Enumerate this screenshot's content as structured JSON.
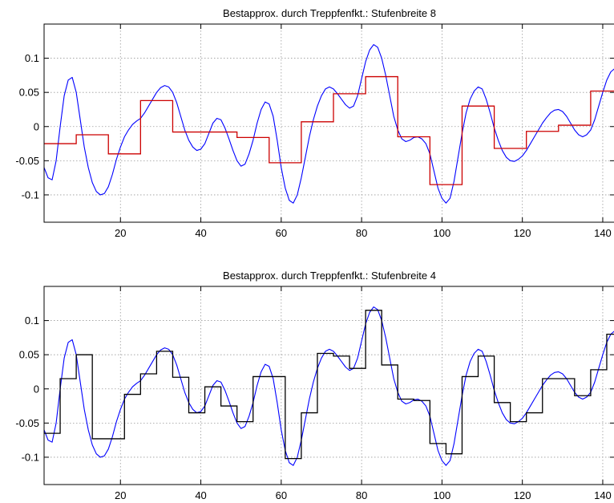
{
  "chart_data": [
    {
      "type": "line",
      "title": "Bestapprox. durch Treppfenfkt.: Stufenbreite 8",
      "xlabel": "",
      "ylabel": "",
      "xlim": [
        1,
        143
      ],
      "ylim": [
        -0.14,
        0.15
      ],
      "grid": true,
      "xticks": [
        20,
        40,
        60,
        80,
        100,
        120,
        140
      ],
      "yticks": [
        -0.1,
        -0.05,
        0,
        0.05,
        0.1
      ],
      "xtick_labels": [
        "20",
        "40",
        "60",
        "80",
        "100",
        "120",
        "140"
      ],
      "ytick_labels": [
        "-0.1",
        "-0.05",
        "0",
        "0.05",
        "0.1"
      ],
      "series": [
        {
          "kind": "line",
          "color": "#0000ff",
          "x": [
            1,
            2,
            3,
            4,
            5,
            6,
            7,
            8,
            9,
            10,
            11,
            12,
            13,
            14,
            15,
            16,
            17,
            18,
            19,
            20,
            21,
            22,
            23,
            24,
            25,
            26,
            27,
            28,
            29,
            30,
            31,
            32,
            33,
            34,
            35,
            36,
            37,
            38,
            39,
            40,
            41,
            42,
            43,
            44,
            45,
            46,
            47,
            48,
            49,
            50,
            51,
            52,
            53,
            54,
            55,
            56,
            57,
            58,
            59,
            60,
            61,
            62,
            63,
            64,
            65,
            66,
            67,
            68,
            69,
            70,
            71,
            72,
            73,
            74,
            75,
            76,
            77,
            78,
            79,
            80,
            81,
            82,
            83,
            84,
            85,
            86,
            87,
            88,
            89,
            90,
            91,
            92,
            93,
            94,
            95,
            96,
            97,
            98,
            99,
            100,
            101,
            102,
            103,
            104,
            105,
            106,
            107,
            108,
            109,
            110,
            111,
            112,
            113,
            114,
            115,
            116,
            117,
            118,
            119,
            120,
            121,
            122,
            123,
            124,
            125,
            126,
            127,
            128,
            129,
            130,
            131,
            132,
            133,
            134,
            135,
            136,
            137,
            138,
            139,
            140,
            141,
            142,
            143
          ],
          "y": [
            -0.06,
            -0.075,
            -0.078,
            -0.05,
            0.0,
            0.045,
            0.068,
            0.072,
            0.05,
            0.01,
            -0.03,
            -0.06,
            -0.082,
            -0.095,
            -0.1,
            -0.098,
            -0.088,
            -0.07,
            -0.048,
            -0.03,
            -0.015,
            -0.005,
            0.003,
            0.008,
            0.012,
            0.02,
            0.03,
            0.04,
            0.05,
            0.057,
            0.06,
            0.058,
            0.05,
            0.035,
            0.015,
            -0.005,
            -0.02,
            -0.03,
            -0.035,
            -0.033,
            -0.025,
            -0.01,
            0.005,
            0.012,
            0.01,
            -0.002,
            -0.018,
            -0.035,
            -0.05,
            -0.058,
            -0.055,
            -0.04,
            -0.02,
            0.005,
            0.025,
            0.036,
            0.033,
            0.015,
            -0.02,
            -0.06,
            -0.09,
            -0.108,
            -0.112,
            -0.1,
            -0.075,
            -0.045,
            -0.015,
            0.01,
            0.03,
            0.045,
            0.055,
            0.058,
            0.055,
            0.048,
            0.04,
            0.032,
            0.027,
            0.03,
            0.045,
            0.07,
            0.095,
            0.112,
            0.12,
            0.116,
            0.1,
            0.075,
            0.045,
            0.015,
            -0.005,
            -0.018,
            -0.022,
            -0.02,
            -0.016,
            -0.015,
            -0.018,
            -0.025,
            -0.04,
            -0.065,
            -0.09,
            -0.105,
            -0.112,
            -0.105,
            -0.08,
            -0.045,
            -0.01,
            0.02,
            0.04,
            0.052,
            0.058,
            0.055,
            0.04,
            0.02,
            -0.002,
            -0.02,
            -0.035,
            -0.045,
            -0.05,
            -0.051,
            -0.048,
            -0.043,
            -0.035,
            -0.025,
            -0.015,
            -0.005,
            0.005,
            0.013,
            0.02,
            0.024,
            0.025,
            0.022,
            0.015,
            0.005,
            -0.005,
            -0.012,
            -0.015,
            -0.012,
            -0.005,
            0.01,
            0.03,
            0.05,
            0.068,
            0.08,
            0.085
          ]
        },
        {
          "kind": "step",
          "color": "#cc0000",
          "edges": [
            1,
            9,
            17,
            25,
            33,
            41,
            49,
            57,
            65,
            73,
            81,
            89,
            97,
            105,
            113,
            121,
            129,
            137,
            143
          ],
          "levels": [
            -0.025,
            -0.012,
            -0.04,
            0.038,
            -0.008,
            -0.008,
            -0.016,
            -0.053,
            0.007,
            0.048,
            0.073,
            -0.015,
            -0.085,
            0.03,
            -0.032,
            -0.007,
            0.002,
            0.052
          ]
        }
      ]
    },
    {
      "type": "line",
      "title": "Bestapprox. durch Treppfenfkt.: Stufenbreite 4",
      "xlabel": "",
      "ylabel": "",
      "xlim": [
        1,
        143
      ],
      "ylim": [
        -0.14,
        0.15
      ],
      "grid": true,
      "xticks": [
        20,
        40,
        60,
        80,
        100,
        120,
        140
      ],
      "yticks": [
        -0.1,
        -0.05,
        0,
        0.05,
        0.1
      ],
      "xtick_labels": [
        "20",
        "40",
        "60",
        "80",
        "100",
        "120",
        "140"
      ],
      "ytick_labels": [
        "-0.1",
        "-0.05",
        "0",
        "0.05",
        "0.1"
      ],
      "series": [
        {
          "kind": "line",
          "color": "#0000ff",
          "x": [
            1,
            2,
            3,
            4,
            5,
            6,
            7,
            8,
            9,
            10,
            11,
            12,
            13,
            14,
            15,
            16,
            17,
            18,
            19,
            20,
            21,
            22,
            23,
            24,
            25,
            26,
            27,
            28,
            29,
            30,
            31,
            32,
            33,
            34,
            35,
            36,
            37,
            38,
            39,
            40,
            41,
            42,
            43,
            44,
            45,
            46,
            47,
            48,
            49,
            50,
            51,
            52,
            53,
            54,
            55,
            56,
            57,
            58,
            59,
            60,
            61,
            62,
            63,
            64,
            65,
            66,
            67,
            68,
            69,
            70,
            71,
            72,
            73,
            74,
            75,
            76,
            77,
            78,
            79,
            80,
            81,
            82,
            83,
            84,
            85,
            86,
            87,
            88,
            89,
            90,
            91,
            92,
            93,
            94,
            95,
            96,
            97,
            98,
            99,
            100,
            101,
            102,
            103,
            104,
            105,
            106,
            107,
            108,
            109,
            110,
            111,
            112,
            113,
            114,
            115,
            116,
            117,
            118,
            119,
            120,
            121,
            122,
            123,
            124,
            125,
            126,
            127,
            128,
            129,
            130,
            131,
            132,
            133,
            134,
            135,
            136,
            137,
            138,
            139,
            140,
            141,
            142,
            143
          ],
          "y": [
            -0.06,
            -0.075,
            -0.078,
            -0.05,
            0.0,
            0.045,
            0.068,
            0.072,
            0.05,
            0.01,
            -0.03,
            -0.06,
            -0.082,
            -0.095,
            -0.1,
            -0.098,
            -0.088,
            -0.07,
            -0.048,
            -0.03,
            -0.015,
            -0.005,
            0.003,
            0.008,
            0.012,
            0.02,
            0.03,
            0.04,
            0.05,
            0.057,
            0.06,
            0.058,
            0.05,
            0.035,
            0.015,
            -0.005,
            -0.02,
            -0.03,
            -0.035,
            -0.033,
            -0.025,
            -0.01,
            0.005,
            0.012,
            0.01,
            -0.002,
            -0.018,
            -0.035,
            -0.05,
            -0.058,
            -0.055,
            -0.04,
            -0.02,
            0.005,
            0.025,
            0.036,
            0.033,
            0.015,
            -0.02,
            -0.06,
            -0.09,
            -0.108,
            -0.112,
            -0.1,
            -0.075,
            -0.045,
            -0.015,
            0.01,
            0.03,
            0.045,
            0.055,
            0.058,
            0.055,
            0.048,
            0.04,
            0.032,
            0.027,
            0.03,
            0.045,
            0.07,
            0.095,
            0.112,
            0.12,
            0.116,
            0.1,
            0.075,
            0.045,
            0.015,
            -0.005,
            -0.018,
            -0.022,
            -0.02,
            -0.016,
            -0.015,
            -0.018,
            -0.025,
            -0.04,
            -0.065,
            -0.09,
            -0.105,
            -0.112,
            -0.105,
            -0.08,
            -0.045,
            -0.01,
            0.02,
            0.04,
            0.052,
            0.058,
            0.055,
            0.04,
            0.02,
            -0.002,
            -0.02,
            -0.035,
            -0.045,
            -0.05,
            -0.051,
            -0.048,
            -0.043,
            -0.035,
            -0.025,
            -0.015,
            -0.005,
            0.005,
            0.013,
            0.02,
            0.024,
            0.025,
            0.022,
            0.015,
            0.005,
            -0.005,
            -0.012,
            -0.015,
            -0.012,
            -0.005,
            0.01,
            0.03,
            0.05,
            0.068,
            0.08,
            0.085
          ]
        },
        {
          "kind": "step",
          "color": "#000000",
          "edges": [
            1,
            5,
            9,
            13,
            17,
            21,
            25,
            29,
            33,
            37,
            41,
            45,
            49,
            53,
            57,
            61,
            65,
            69,
            73,
            77,
            81,
            85,
            89,
            93,
            97,
            101,
            105,
            109,
            113,
            117,
            121,
            125,
            129,
            133,
            137,
            141,
            143
          ],
          "levels": [
            -0.065,
            0.015,
            0.05,
            -0.073,
            -0.073,
            -0.008,
            0.022,
            0.055,
            0.017,
            -0.035,
            0.003,
            -0.025,
            -0.048,
            0.018,
            0.018,
            -0.102,
            -0.035,
            0.052,
            0.048,
            0.03,
            0.115,
            0.035,
            -0.015,
            -0.017,
            -0.08,
            -0.095,
            0.018,
            0.048,
            -0.02,
            -0.048,
            -0.035,
            0.015,
            0.015,
            -0.01,
            0.028,
            0.08
          ]
        }
      ]
    }
  ]
}
